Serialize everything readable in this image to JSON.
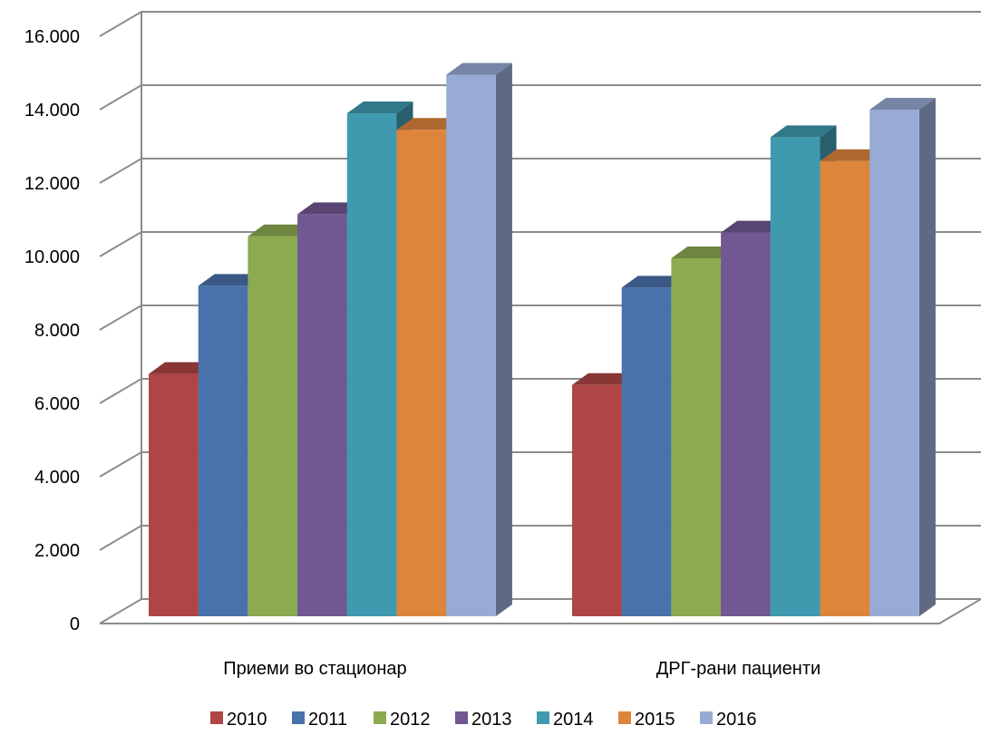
{
  "chart_data": {
    "type": "bar",
    "view": "3d-clustered-column",
    "categories": [
      "Приеми во стационар",
      "ДРГ-рани пациенти"
    ],
    "series": [
      {
        "name": "2010",
        "values": [
          6800,
          6500
        ],
        "color": "#B04545"
      },
      {
        "name": "2011",
        "values": [
          9200,
          9150
        ],
        "color": "#4A72AA"
      },
      {
        "name": "2012",
        "values": [
          10550,
          9950
        ],
        "color": "#8CAA4F"
      },
      {
        "name": "2013",
        "values": [
          11150,
          10650
        ],
        "color": "#715893"
      },
      {
        "name": "2014",
        "values": [
          13900,
          13250
        ],
        "color": "#3F9AB0"
      },
      {
        "name": "2015",
        "values": [
          13450,
          12600
        ],
        "color": "#DE853C"
      },
      {
        "name": "2016",
        "values": [
          14950,
          14000
        ],
        "color": "#97ABD4"
      }
    ],
    "y_ticks": [
      "0",
      "2.000",
      "4.000",
      "6.000",
      "8.000",
      "10.000",
      "12.000",
      "14.000",
      "16.000"
    ],
    "ylim": [
      0,
      16000
    ],
    "title": "",
    "xlabel": "",
    "ylabel": "",
    "grid": true,
    "legend_position": "bottom"
  }
}
